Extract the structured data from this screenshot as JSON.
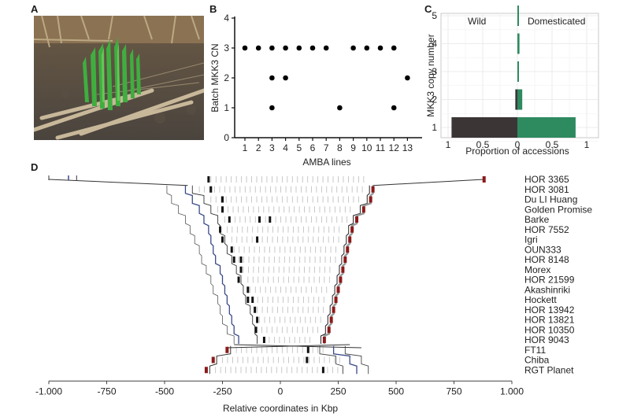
{
  "panels": {
    "a": {
      "label": "A",
      "image_alt": "barley-spikes-with-green-sprouts-photo"
    },
    "b": {
      "label": "B"
    },
    "c": {
      "label": "C"
    },
    "d": {
      "label": "D"
    }
  },
  "chart_data": [
    {
      "id": "B",
      "type": "scatter",
      "title": "",
      "xlabel": "AMBA lines",
      "ylabel": "Batch MKK3 CN",
      "xticks": [
        "1",
        "2",
        "3",
        "4",
        "5",
        "6",
        "7",
        "8",
        "9",
        "10",
        "11",
        "12",
        "13"
      ],
      "yticks": [
        "0",
        "1",
        "2",
        "3",
        "4"
      ],
      "ylim": [
        0,
        4
      ],
      "xlim": [
        1,
        13
      ],
      "grid": false,
      "points": [
        {
          "x": 1,
          "y": 3
        },
        {
          "x": 2,
          "y": 3
        },
        {
          "x": 3,
          "y": 3
        },
        {
          "x": 3,
          "y": 2
        },
        {
          "x": 3,
          "y": 1
        },
        {
          "x": 4,
          "y": 3
        },
        {
          "x": 4,
          "y": 2
        },
        {
          "x": 5,
          "y": 3
        },
        {
          "x": 6,
          "y": 3
        },
        {
          "x": 7,
          "y": 3
        },
        {
          "x": 8,
          "y": 1
        },
        {
          "x": 9,
          "y": 3
        },
        {
          "x": 10,
          "y": 3
        },
        {
          "x": 11,
          "y": 3
        },
        {
          "x": 12,
          "y": 3
        },
        {
          "x": 12,
          "y": 1
        },
        {
          "x": 13,
          "y": 2
        }
      ]
    },
    {
      "id": "C",
      "type": "bar",
      "orientation": "horizontal-diverging",
      "xlabel": "Proportion of accessions",
      "ylabel": "MKK3 copy number",
      "xticks": [
        "1",
        "0.5",
        "0",
        "0.5",
        "1"
      ],
      "categories": [
        "1",
        "2",
        "3",
        "4",
        "5"
      ],
      "annotations": [
        "Wild",
        "Domesticated"
      ],
      "grid": true,
      "series": [
        {
          "name": "Wild",
          "color": "#3b3536",
          "values": [
            0.95,
            0.03,
            0.0,
            0.0,
            0.0
          ]
        },
        {
          "name": "Domesticated",
          "color": "#2e8a5f",
          "values": [
            0.84,
            0.07,
            0.01,
            0.03,
            0.01
          ]
        }
      ]
    },
    {
      "id": "D",
      "type": "line",
      "description": "Synteny/alignment of MKK3 region across barley accessions",
      "xlabel": "Relative coordinates in Kbp",
      "xticks": [
        "-1.000",
        "-750",
        "-500",
        "-250",
        "0",
        "250",
        "500",
        "750",
        "1.000"
      ],
      "xlim": [
        -1000,
        1000
      ],
      "accessions": [
        "HOR 3365",
        "HOR 3081",
        "Du LI Huang",
        "Golden Promise",
        "Barke",
        "HOR 7552",
        "Igri",
        "OUN333",
        "HOR 8148",
        "Morex",
        "HOR 21599",
        "Akashinriki",
        "Hockett",
        "HOR 13942",
        "HOR 13821",
        "HOR 10350",
        "HOR 9043",
        "FT11",
        "Chiba",
        "RGT Planet"
      ],
      "colors": {
        "left_line": "#3a4a8a",
        "right_marker": "#8b1a1a",
        "center_marker": "#111111",
        "tick": "#bbbbbb"
      }
    }
  ]
}
